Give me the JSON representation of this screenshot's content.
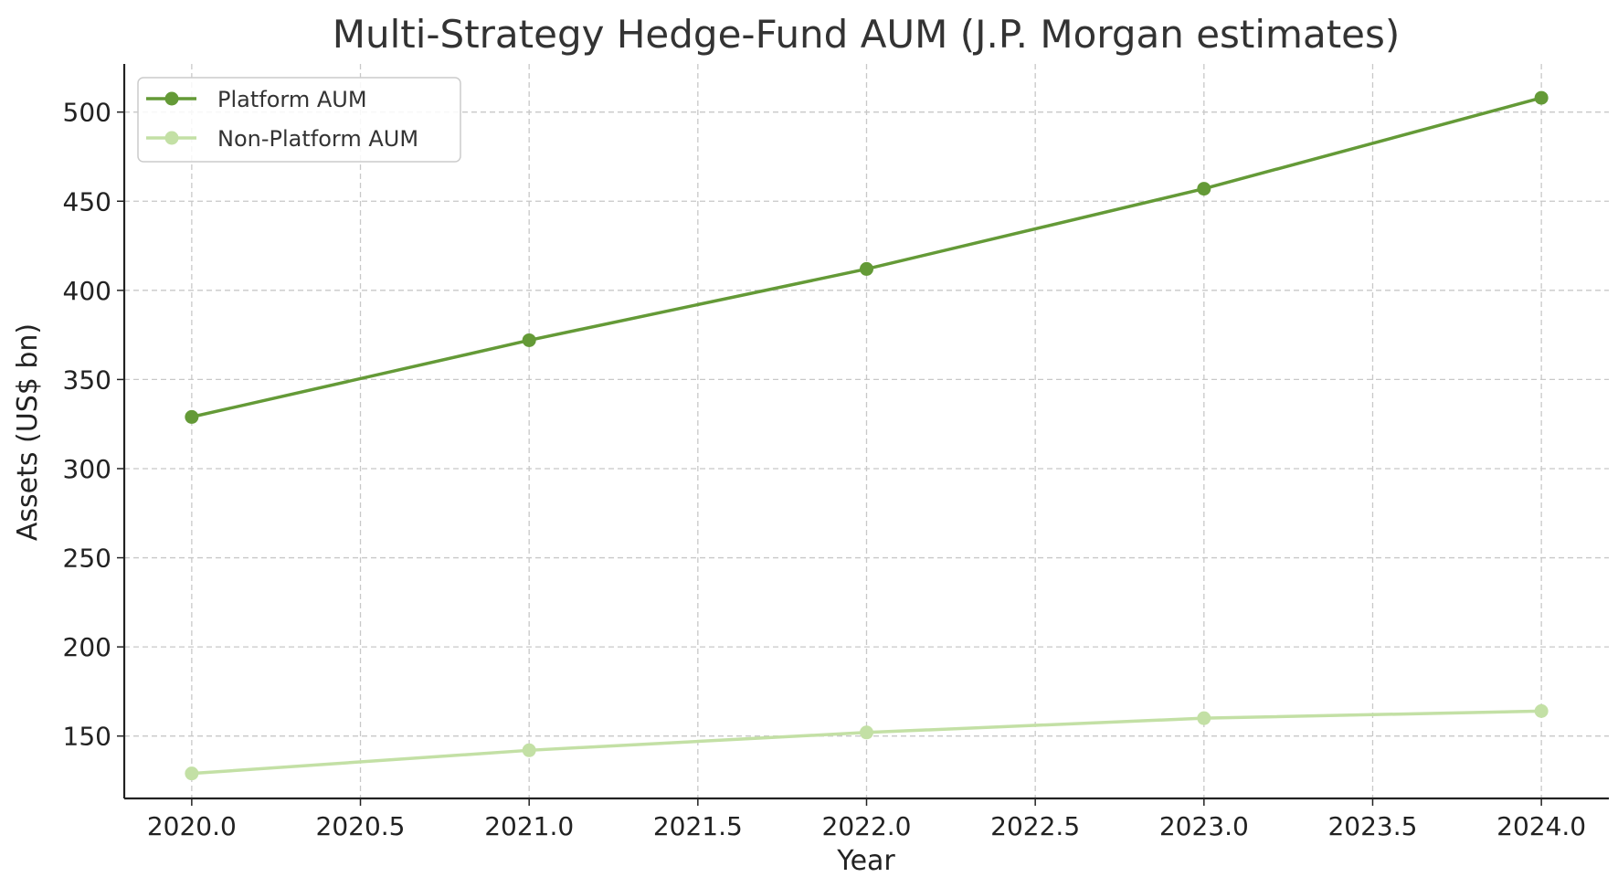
{
  "chart_data": {
    "type": "line",
    "title": "Multi-Strategy Hedge-Fund AUM (J.P. Morgan estimates)",
    "xlabel": "Year",
    "ylabel": "Assets (US$ bn)",
    "xlim": [
      2019.8,
      2024.2
    ],
    "ylim": [
      115,
      527
    ],
    "xticks": [
      2020.0,
      2020.5,
      2021.0,
      2021.5,
      2022.0,
      2022.5,
      2023.0,
      2023.5,
      2024.0
    ],
    "xtick_labels": [
      "2020.0",
      "2020.5",
      "2021.0",
      "2021.5",
      "2022.0",
      "2022.5",
      "2023.0",
      "2023.5",
      "2024.0"
    ],
    "yticks": [
      150,
      200,
      250,
      300,
      350,
      400,
      450,
      500
    ],
    "ytick_labels": [
      "150",
      "200",
      "250",
      "300",
      "350",
      "400",
      "450",
      "500"
    ],
    "grid": true,
    "legend_position": "top-left",
    "x": [
      2020,
      2021,
      2022,
      2023,
      2024
    ],
    "series": [
      {
        "name": "Platform AUM",
        "values": [
          329,
          372,
          412,
          457,
          508
        ],
        "color": "#649a37"
      },
      {
        "name": "Non-Platform AUM",
        "values": [
          129,
          142,
          152,
          160,
          164
        ],
        "color": "#c3e0a5"
      }
    ]
  }
}
